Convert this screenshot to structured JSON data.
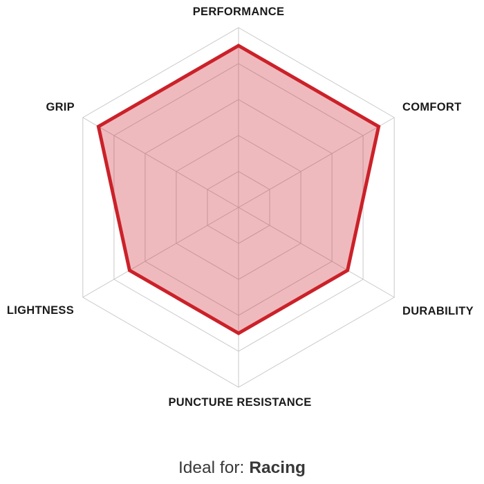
{
  "chart_data": {
    "type": "radar",
    "axes": [
      "PERFORMANCE",
      "COMFORT",
      "DURABILITY",
      "PUNCTURE RESISTANCE",
      "LIGHTNESS",
      "GRIP"
    ],
    "values": [
      9,
      9,
      7,
      7,
      7,
      9
    ],
    "max": 10,
    "rings": 5,
    "grid": "on",
    "legend": "none",
    "series_color": "#cb2129",
    "series_fill_opacity": 0.31,
    "grid_color": "#c9c9c9",
    "label_color": "#1a1a1a"
  },
  "footer": {
    "prefix": "Ideal for:",
    "value": "Racing",
    "text_color": "#383838"
  }
}
